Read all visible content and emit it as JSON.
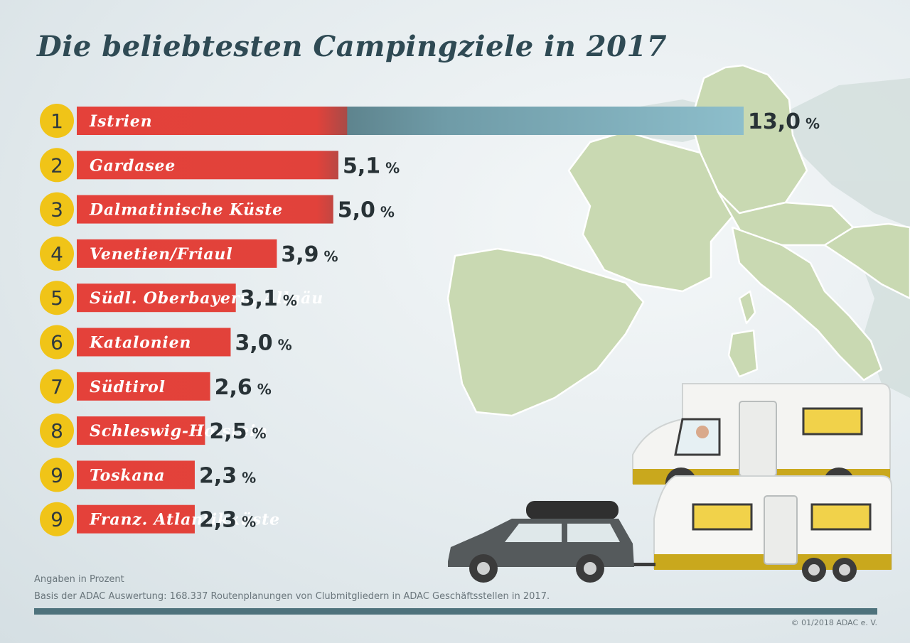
{
  "title": "Die beliebtesten Campingziele in 2017",
  "unit_symbol": "%",
  "chart_data": {
    "type": "bar",
    "orientation": "horizontal",
    "title": "Die beliebtesten Campingziele in 2017",
    "ranks": [
      "1",
      "2",
      "3",
      "4",
      "5",
      "6",
      "7",
      "8",
      "9",
      "9"
    ],
    "categories": [
      "Istrien",
      "Gardasee",
      "Dalmatinische Küste",
      "Venetien/Friaul",
      "Südl. Oberbayern, Allgäu",
      "Katalonien",
      "Südtirol",
      "Schleswig-Holstein",
      "Toskana",
      "Franz. Atlantikküste"
    ],
    "values": [
      13.0,
      5.1,
      5.0,
      3.9,
      3.1,
      3.0,
      2.6,
      2.5,
      2.3,
      2.3
    ],
    "value_labels": [
      "13,0",
      "5,1",
      "5,0",
      "3,9",
      "3,1",
      "3,0",
      "2,6",
      "2,5",
      "2,3",
      "2,3"
    ],
    "legend": "none",
    "grid": false
  },
  "colors": {
    "bar_red": "#e4413a",
    "bar_blue": "#7fb3c1",
    "rank_circle": "#f0c418",
    "title": "#2f4a54",
    "rule": "#4e727c",
    "map_land": "#c9d9b2"
  },
  "footer": {
    "note1": "Angaben in Prozent",
    "note2": "Basis der ADAC Auswertung: 168.337 Routenplanungen von Clubmitgliedern in ADAC Geschäftsstellen in 2017.",
    "copyright": "© 01/2018 ADAC e. V."
  }
}
